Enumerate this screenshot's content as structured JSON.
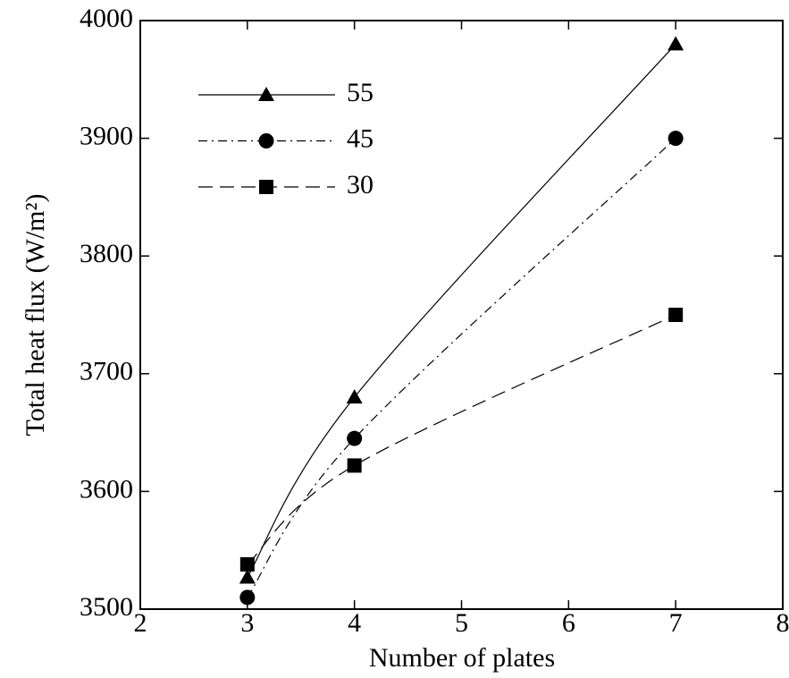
{
  "chart_data": {
    "type": "line",
    "x_label": "Number of plates",
    "y_label": "Total heat flux (W/m²)",
    "xlim": [
      2,
      8
    ],
    "xticks": [
      2,
      3,
      4,
      5,
      6,
      7,
      8
    ],
    "ylim": [
      3500,
      4000
    ],
    "yticks": [
      3500,
      3600,
      3700,
      3800,
      3900,
      4000
    ],
    "x": [
      3,
      4,
      7
    ],
    "series": [
      {
        "name": "55",
        "color": "#000000",
        "marker": "triangle",
        "dash": "solid",
        "values": [
          3527,
          3680,
          3980
        ]
      },
      {
        "name": "45",
        "color": "#000000",
        "marker": "circle",
        "dash": "dashdot",
        "values": [
          3510,
          3645,
          3900
        ]
      },
      {
        "name": "30",
        "color": "#000000",
        "marker": "square",
        "dash": "dashed",
        "values": [
          3538,
          3622,
          3750
        ]
      }
    ],
    "legend": "upper left"
  }
}
